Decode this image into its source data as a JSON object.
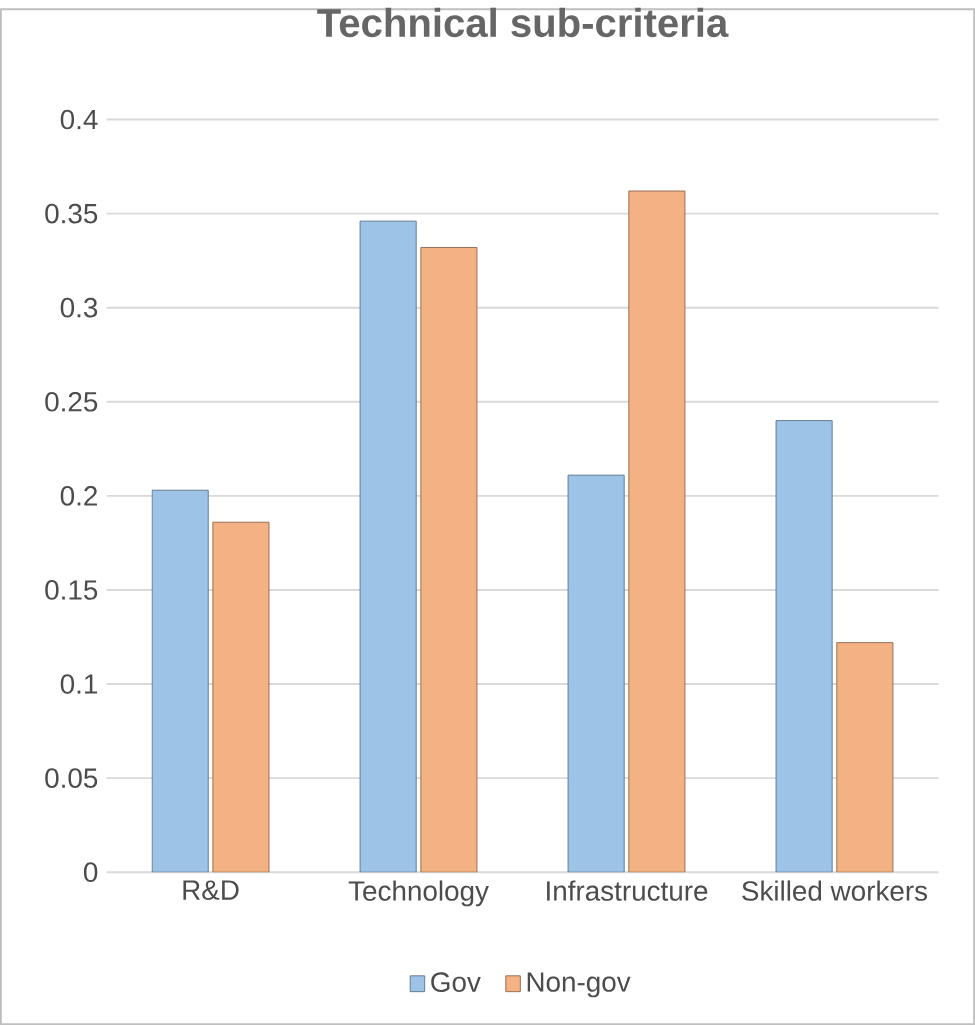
{
  "chart_data": {
    "type": "bar",
    "title": "Technical sub-criteria",
    "categories": [
      "R&D",
      "Technology",
      "Infrastructure",
      "Skilled workers"
    ],
    "series": [
      {
        "name": "Gov",
        "color": "#9dc3e6",
        "values": [
          0.203,
          0.346,
          0.211,
          0.24
        ]
      },
      {
        "name": "Non-gov",
        "color": "#f4b183",
        "values": [
          0.186,
          0.332,
          0.362,
          0.122
        ]
      }
    ],
    "ylim": [
      0,
      0.4
    ],
    "yticks": [
      0,
      0.05,
      0.1,
      0.15,
      0.2,
      0.25,
      0.3,
      0.35,
      0.4
    ],
    "grid": "y",
    "legend": "bottom"
  }
}
